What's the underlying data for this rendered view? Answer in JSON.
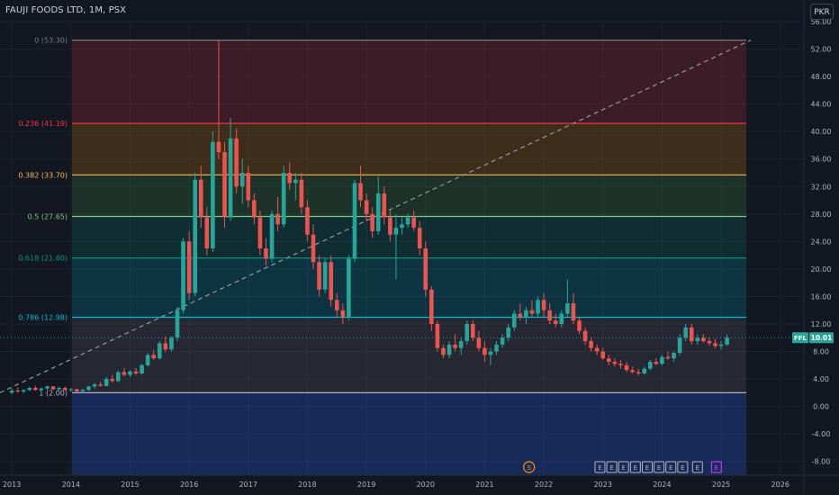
{
  "title": "FAUJI FOODS LTD, 1M, PSX",
  "currency_button": "PKR",
  "colors": {
    "background": "#131722",
    "up": "#26a69a",
    "down": "#ef5350",
    "text": "#b2b5be",
    "grid": "#1e222d"
  },
  "chart_data": {
    "type": "candlestick",
    "ticker": "FFL",
    "last_price": "10.01",
    "y_axis": {
      "min": -10,
      "max": 56,
      "ticks": [
        "56.00",
        "52.00",
        "48.00",
        "44.00",
        "40.00",
        "36.00",
        "32.00",
        "28.00",
        "24.00",
        "20.00",
        "16.00",
        "12.00",
        "8.00",
        "4.00",
        "0.00",
        "-4.00",
        "-8.00"
      ]
    },
    "x_axis": {
      "start": 2012.8,
      "end": 2026.4,
      "ticks": [
        "2013",
        "2014",
        "2015",
        "2016",
        "2017",
        "2018",
        "2019",
        "2020",
        "2021",
        "2022",
        "2023",
        "2024",
        "2025",
        "2026"
      ]
    },
    "fib_levels": [
      {
        "label": "0 (53.30)",
        "price": 53.3,
        "line": "#787b86",
        "fill": "rgba(242,54,69,0.18)"
      },
      {
        "label": "0.236 (41.19)",
        "price": 41.19,
        "line": "#f23645",
        "fill": "rgba(255,152,0,0.18)"
      },
      {
        "label": "0.382 (33.70)",
        "price": 33.7,
        "line": "#ffb74d",
        "fill": "rgba(76,175,80,0.18)"
      },
      {
        "label": "0.5 (27.65)",
        "price": 27.65,
        "line": "#81c784",
        "fill": "rgba(8,153,129,0.18)"
      },
      {
        "label": "0.618 (21.60)",
        "price": 21.6,
        "line": "#089981",
        "fill": "rgba(0,188,212,0.18)"
      },
      {
        "label": "0.786 (12.98)",
        "price": 12.98,
        "line": "#00bcd4",
        "fill": "rgba(120,123,134,0.18)"
      },
      {
        "label": "1 (2.00)",
        "price": 2.0,
        "line": "#b2b5be",
        "fill": "rgba(41,98,255,0.25)"
      }
    ],
    "trendline": {
      "from": [
        2012.8,
        2.0
      ],
      "to": [
        2025.5,
        53.3
      ]
    },
    "candles": [
      [
        2013.0,
        2.0,
        2.6,
        1.8,
        2.3
      ],
      [
        2013.1,
        2.3,
        2.8,
        2.0,
        2.2
      ],
      [
        2013.2,
        2.2,
        2.5,
        1.9,
        2.4
      ],
      [
        2013.3,
        2.4,
        2.9,
        2.2,
        2.7
      ],
      [
        2013.4,
        2.7,
        3.0,
        2.3,
        2.4
      ],
      [
        2013.5,
        2.4,
        2.8,
        2.1,
        2.6
      ],
      [
        2013.6,
        2.6,
        3.1,
        2.4,
        2.9
      ],
      [
        2013.7,
        2.9,
        3.0,
        2.4,
        2.5
      ],
      [
        2013.8,
        2.5,
        2.9,
        2.2,
        2.7
      ],
      [
        2013.9,
        2.7,
        2.9,
        2.3,
        2.4
      ],
      [
        2014.0,
        2.4,
        2.7,
        2.1,
        2.5
      ],
      [
        2014.1,
        2.5,
        2.6,
        2.0,
        2.2
      ],
      [
        2014.2,
        2.2,
        2.6,
        2.0,
        2.4
      ],
      [
        2014.3,
        2.4,
        3.0,
        2.3,
        2.9
      ],
      [
        2014.4,
        2.9,
        3.4,
        2.6,
        3.2
      ],
      [
        2014.5,
        3.2,
        3.6,
        2.9,
        3.0
      ],
      [
        2014.6,
        3.0,
        4.3,
        2.9,
        4.0
      ],
      [
        2014.7,
        4.0,
        4.6,
        3.5,
        3.7
      ],
      [
        2014.8,
        3.7,
        5.2,
        3.5,
        5.0
      ],
      [
        2014.9,
        5.0,
        5.6,
        4.4,
        4.6
      ],
      [
        2015.0,
        4.6,
        5.3,
        4.3,
        5.1
      ],
      [
        2015.1,
        5.1,
        5.6,
        4.6,
        4.8
      ],
      [
        2015.2,
        4.8,
        6.2,
        4.6,
        6.0
      ],
      [
        2015.3,
        6.0,
        7.8,
        5.8,
        7.5
      ],
      [
        2015.4,
        7.5,
        8.2,
        6.8,
        7.0
      ],
      [
        2015.5,
        7.0,
        9.5,
        6.8,
        9.2
      ],
      [
        2015.6,
        9.2,
        10.2,
        7.9,
        8.3
      ],
      [
        2015.7,
        8.3,
        10.3,
        8.0,
        10.0
      ],
      [
        2015.8,
        10.0,
        14.5,
        9.5,
        14.0
      ],
      [
        2015.9,
        14.0,
        24.5,
        13.5,
        24.0
      ],
      [
        2016.0,
        24.0,
        25.5,
        15.5,
        16.5
      ],
      [
        2016.1,
        16.5,
        34.0,
        16.0,
        33.0
      ],
      [
        2016.2,
        33.0,
        35.0,
        26.0,
        27.5
      ],
      [
        2016.3,
        27.5,
        29.0,
        22.0,
        23.0
      ],
      [
        2016.4,
        23.0,
        40.0,
        22.5,
        38.5
      ],
      [
        2016.5,
        38.5,
        53.3,
        36.0,
        37.0
      ],
      [
        2016.6,
        37.0,
        38.5,
        26.0,
        27.5
      ],
      [
        2016.7,
        27.5,
        42.0,
        27.0,
        39.0
      ],
      [
        2016.8,
        39.0,
        40.5,
        31.0,
        32.0
      ],
      [
        2016.9,
        32.0,
        36.0,
        29.5,
        34.0
      ],
      [
        2017.0,
        34.0,
        35.0,
        29.0,
        30.0
      ],
      [
        2017.1,
        30.0,
        31.0,
        26.5,
        27.5
      ],
      [
        2017.2,
        27.5,
        28.5,
        22.0,
        23.0
      ],
      [
        2017.3,
        23.0,
        24.5,
        20.5,
        21.5
      ],
      [
        2017.4,
        21.5,
        28.5,
        21.0,
        28.0
      ],
      [
        2017.5,
        28.0,
        30.5,
        25.5,
        26.5
      ],
      [
        2017.6,
        26.5,
        35.0,
        26.0,
        34.0
      ],
      [
        2017.7,
        34.0,
        35.5,
        31.5,
        32.5
      ],
      [
        2017.8,
        32.5,
        34.0,
        30.0,
        33.0
      ],
      [
        2017.9,
        33.0,
        34.0,
        28.0,
        29.0
      ],
      [
        2018.0,
        29.0,
        30.0,
        24.0,
        25.0
      ],
      [
        2018.1,
        25.0,
        26.5,
        20.0,
        21.0
      ],
      [
        2018.2,
        21.0,
        22.0,
        16.0,
        17.0
      ],
      [
        2018.3,
        17.0,
        21.5,
        16.5,
        21.0
      ],
      [
        2018.4,
        21.0,
        22.0,
        14.5,
        15.5
      ],
      [
        2018.5,
        15.5,
        16.5,
        13.0,
        14.0
      ],
      [
        2018.6,
        14.0,
        15.0,
        12.0,
        13.0
      ],
      [
        2018.7,
        13.0,
        22.0,
        12.5,
        21.5
      ],
      [
        2018.8,
        21.5,
        33.0,
        21.0,
        32.5
      ],
      [
        2018.9,
        32.5,
        35.0,
        29.0,
        30.0
      ],
      [
        2019.0,
        30.0,
        31.0,
        27.0,
        28.0
      ],
      [
        2019.1,
        28.0,
        29.0,
        24.5,
        25.5
      ],
      [
        2019.2,
        25.5,
        33.5,
        25.0,
        31.0
      ],
      [
        2019.3,
        31.0,
        32.0,
        26.5,
        27.5
      ],
      [
        2019.4,
        27.5,
        28.5,
        24.0,
        25.0
      ],
      [
        2019.5,
        25.0,
        28.0,
        18.5,
        26.0
      ],
      [
        2019.6,
        26.0,
        27.5,
        25.0,
        26.5
      ],
      [
        2019.7,
        26.5,
        28.0,
        26.0,
        27.5
      ],
      [
        2019.8,
        27.5,
        28.5,
        25.5,
        26.0
      ],
      [
        2019.9,
        26.0,
        27.0,
        22.0,
        23.0
      ],
      [
        2020.0,
        23.0,
        24.0,
        16.0,
        17.0
      ],
      [
        2020.1,
        17.0,
        17.5,
        11.0,
        12.0
      ],
      [
        2020.2,
        12.0,
        12.5,
        8.0,
        8.5
      ],
      [
        2020.3,
        8.5,
        9.0,
        7.0,
        7.5
      ],
      [
        2020.4,
        7.5,
        9.5,
        7.0,
        9.0
      ],
      [
        2020.5,
        9.0,
        10.5,
        8.0,
        8.5
      ],
      [
        2020.6,
        8.5,
        10.0,
        7.5,
        9.5
      ],
      [
        2020.7,
        9.5,
        12.5,
        9.0,
        12.0
      ],
      [
        2020.8,
        12.0,
        12.5,
        9.5,
        10.0
      ],
      [
        2020.9,
        10.0,
        11.0,
        8.0,
        8.5
      ],
      [
        2021.0,
        8.5,
        9.5,
        6.5,
        7.5
      ],
      [
        2021.1,
        7.5,
        8.5,
        6.0,
        8.0
      ],
      [
        2021.2,
        8.0,
        9.5,
        7.5,
        9.0
      ],
      [
        2021.3,
        9.0,
        10.5,
        8.5,
        10.0
      ],
      [
        2021.4,
        10.0,
        12.0,
        9.5,
        11.5
      ],
      [
        2021.5,
        11.5,
        14.0,
        11.0,
        13.5
      ],
      [
        2021.6,
        13.5,
        15.0,
        12.5,
        13.0
      ],
      [
        2021.7,
        13.0,
        14.5,
        12.0,
        14.0
      ],
      [
        2021.8,
        14.0,
        15.5,
        13.0,
        13.5
      ],
      [
        2021.9,
        13.5,
        16.0,
        13.0,
        15.5
      ],
      [
        2022.0,
        15.5,
        16.5,
        13.0,
        14.0
      ],
      [
        2022.1,
        14.0,
        15.0,
        12.0,
        12.5
      ],
      [
        2022.2,
        12.5,
        13.5,
        11.5,
        12.0
      ],
      [
        2022.3,
        12.0,
        14.0,
        11.5,
        13.5
      ],
      [
        2022.4,
        13.5,
        18.5,
        13.0,
        15.0
      ],
      [
        2022.5,
        15.0,
        16.5,
        12.0,
        12.5
      ],
      [
        2022.6,
        12.5,
        13.0,
        10.5,
        11.0
      ],
      [
        2022.7,
        11.0,
        11.5,
        9.0,
        9.5
      ],
      [
        2022.8,
        9.5,
        10.0,
        8.0,
        8.5
      ],
      [
        2022.9,
        8.5,
        9.0,
        7.5,
        8.0
      ],
      [
        2023.0,
        8.0,
        8.5,
        6.8,
        7.0
      ],
      [
        2023.1,
        7.0,
        7.5,
        6.0,
        6.5
      ],
      [
        2023.2,
        6.5,
        7.0,
        5.8,
        6.2
      ],
      [
        2023.3,
        6.2,
        6.8,
        5.5,
        6.0
      ],
      [
        2023.4,
        6.0,
        6.5,
        5.0,
        5.3
      ],
      [
        2023.5,
        5.3,
        5.8,
        4.8,
        5.0
      ],
      [
        2023.6,
        5.0,
        5.5,
        4.5,
        4.8
      ],
      [
        2023.7,
        4.8,
        5.8,
        4.6,
        5.5
      ],
      [
        2023.8,
        5.5,
        6.8,
        5.3,
        6.5
      ],
      [
        2023.9,
        6.5,
        7.0,
        6.0,
        6.2
      ],
      [
        2024.0,
        6.2,
        7.5,
        6.0,
        7.2
      ],
      [
        2024.1,
        7.2,
        8.0,
        6.8,
        7.0
      ],
      [
        2024.2,
        7.0,
        8.0,
        6.5,
        7.8
      ],
      [
        2024.3,
        7.8,
        10.5,
        7.5,
        10.0
      ],
      [
        2024.4,
        10.0,
        12.0,
        9.5,
        11.5
      ],
      [
        2024.5,
        11.5,
        12.0,
        9.0,
        9.5
      ],
      [
        2024.6,
        9.5,
        10.5,
        9.0,
        10.0
      ],
      [
        2024.7,
        10.0,
        10.5,
        9.3,
        9.5
      ],
      [
        2024.8,
        9.5,
        10.0,
        8.8,
        9.2
      ],
      [
        2024.9,
        9.2,
        9.8,
        8.5,
        8.8
      ],
      [
        2025.0,
        8.8,
        9.5,
        8.3,
        9.0
      ],
      [
        2025.1,
        9.0,
        10.5,
        8.8,
        10.01
      ]
    ],
    "events": [
      {
        "label": "S",
        "x": 2021.75,
        "color": "#ff9800",
        "shape": "circle"
      },
      {
        "label": "E",
        "x": 2022.95,
        "color": "#b2b5be",
        "shape": "square"
      },
      {
        "label": "E",
        "x": 2023.15,
        "color": "#b2b5be",
        "shape": "square"
      },
      {
        "label": "E",
        "x": 2023.35,
        "color": "#b2b5be",
        "shape": "square"
      },
      {
        "label": "E",
        "x": 2023.55,
        "color": "#b2b5be",
        "shape": "square"
      },
      {
        "label": "E",
        "x": 2023.75,
        "color": "#b2b5be",
        "shape": "square"
      },
      {
        "label": "E",
        "x": 2023.95,
        "color": "#b2b5be",
        "shape": "square"
      },
      {
        "label": "E",
        "x": 2024.15,
        "color": "#b2b5be",
        "shape": "square"
      },
      {
        "label": "E",
        "x": 2024.35,
        "color": "#b2b5be",
        "shape": "square"
      },
      {
        "label": "E",
        "x": 2024.6,
        "color": "#b2b5be",
        "shape": "square"
      },
      {
        "label": "E",
        "x": 2024.92,
        "color": "#e040fb",
        "shape": "square"
      }
    ]
  }
}
